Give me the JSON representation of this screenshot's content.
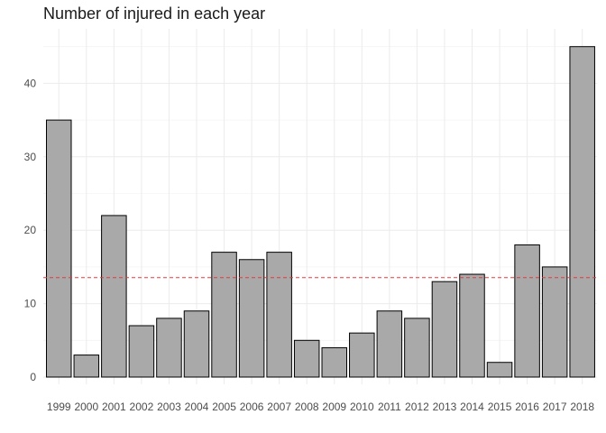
{
  "chart_data": {
    "type": "bar",
    "title": "Number of injured in each year",
    "xlabel": "",
    "ylabel": "",
    "categories": [
      "1999",
      "2000",
      "2001",
      "2002",
      "2003",
      "2004",
      "2005",
      "2006",
      "2007",
      "2008",
      "2009",
      "2010",
      "2011",
      "2012",
      "2013",
      "2014",
      "2015",
      "2016",
      "2017",
      "2018"
    ],
    "values": [
      35,
      3,
      22,
      7,
      8,
      9,
      17,
      16,
      17,
      5,
      4,
      6,
      9,
      8,
      13,
      14,
      2,
      18,
      15,
      45
    ],
    "ylim": [
      0,
      47
    ],
    "yticks": [
      0,
      10,
      20,
      30,
      40
    ],
    "reference_line": {
      "y": 13.55,
      "style": "dashed",
      "color": "#e8393a"
    },
    "bar_color": "#a9a9a9",
    "bar_border": "#000000",
    "grid": true,
    "legend": "none"
  }
}
